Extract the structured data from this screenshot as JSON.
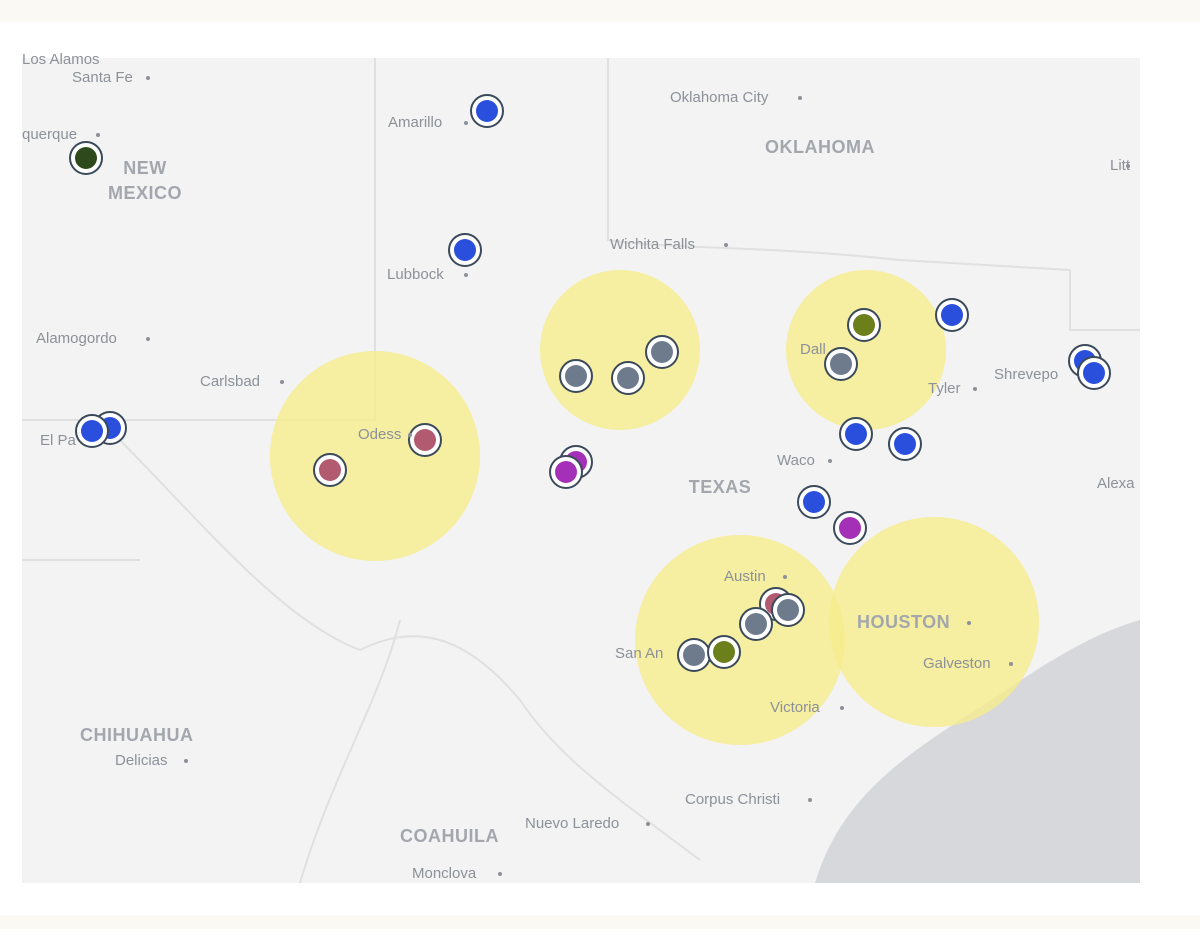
{
  "map": {
    "labels": [
      "Los Alamos",
      "Santa Fe",
      "querque",
      "NEW",
      "MEXICO",
      "Amarillo",
      "Oklahoma City",
      "OKLAHOMA",
      "Litt",
      "Lubbock",
      "Wichita Falls",
      "Alamogordo",
      "Carlsbad",
      "Dall",
      "Tyler",
      "Shrevepo",
      "El Pa",
      "Odess",
      "Waco",
      "TEXAS",
      "Alexa",
      "Austin",
      "HOUSTON",
      "San An",
      "Galveston",
      "Victoria",
      "CHIHUAHUA",
      "Delicias",
      "Corpus Christi",
      "Nuevo Laredo",
      "COAHUILA",
      "Monclova"
    ]
  }
}
